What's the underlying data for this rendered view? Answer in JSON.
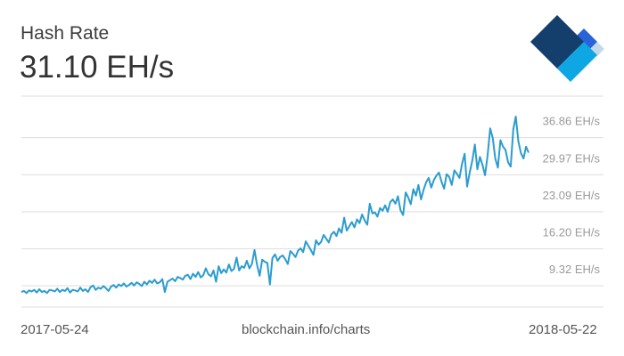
{
  "header": {
    "title": "Hash Rate",
    "current_value": "31.10 EH/s"
  },
  "footer": {
    "start_date": "2017-05-24",
    "source": "blockchain.info/charts",
    "end_date": "2018-05-22"
  },
  "logo": {
    "name": "blockchain-logo-icon",
    "colors": [
      "#8ba2b5",
      "#143e6b",
      "#2a63d8",
      "#0fa7e3",
      "#c3d9ea"
    ]
  },
  "colors": {
    "line": "#2b9ccf",
    "grid": "#dddddd",
    "tick_label": "#9a9a9a"
  },
  "chart_data": {
    "type": "line",
    "title": "Hash Rate",
    "unit": "EH/s",
    "x_start": "2017-05-24",
    "x_end": "2018-05-22",
    "yticks": [
      9.32,
      16.2,
      23.09,
      29.97,
      36.86
    ],
    "ytick_labels": [
      "9.32 EH/s",
      "16.20 EH/s",
      "23.09 EH/s",
      "29.97 EH/s",
      "36.86 EH/s"
    ],
    "ylim": [
      2.4,
      41.6
    ],
    "grid": true,
    "legend": "none",
    "series": [
      {
        "values": [
          5.2,
          5.4,
          5.0,
          5.5,
          5.3,
          5.6,
          5.1,
          5.7,
          5.2,
          5.4,
          5.0,
          5.6,
          5.5,
          5.3,
          5.8,
          5.2,
          5.6,
          5.4,
          5.9,
          5.1,
          5.6,
          5.5,
          5.3,
          6.0,
          5.4,
          5.7,
          5.2,
          6.1,
          6.4,
          5.6,
          6.0,
          5.8,
          6.3,
          5.9,
          5.4,
          6.2,
          6.5,
          6.0,
          6.6,
          6.3,
          6.8,
          6.2,
          6.5,
          6.9,
          6.4,
          7.0,
          6.7,
          6.3,
          7.1,
          6.6,
          7.3,
          6.9,
          7.5,
          6.8,
          7.0,
          7.6,
          5.2,
          7.1,
          7.4,
          7.7,
          7.2,
          8.0,
          7.8,
          7.5,
          8.2,
          8.4,
          7.6,
          8.6,
          8.0,
          8.9,
          7.9,
          8.3,
          9.6,
          8.5,
          8.1,
          9.2,
          7.1,
          10.0,
          8.7,
          9.4,
          8.8,
          10.3,
          9.1,
          9.5,
          11.6,
          9.2,
          10.0,
          9.7,
          11.0,
          9.6,
          10.4,
          13.0,
          10.2,
          8.2,
          11.2,
          10.8,
          10.6,
          6.6,
          11.5,
          12.2,
          11.0,
          11.7,
          12.0,
          11.3,
          10.4,
          12.8,
          12.3,
          11.7,
          12.9,
          13.3,
          12.6,
          14.6,
          13.8,
          13.0,
          12.1,
          14.8,
          14.0,
          14.5,
          15.8,
          15.1,
          14.4,
          15.9,
          16.4,
          15.6,
          17.0,
          16.2,
          19.0,
          16.6,
          17.4,
          18.2,
          17.2,
          18.7,
          18.0,
          19.6,
          18.5,
          17.7,
          21.6,
          19.8,
          20.0,
          19.2,
          20.8,
          20.3,
          21.3,
          20.1,
          21.9,
          22.4,
          21.6,
          23.0,
          20.4,
          19.5,
          23.7,
          22.8,
          21.5,
          24.3,
          23.1,
          25.1,
          22.4,
          24.2,
          25.6,
          26.4,
          24.6,
          26.0,
          26.8,
          27.4,
          25.7,
          24.4,
          27.1,
          26.6,
          25.1,
          27.8,
          27.2,
          26.4,
          29.0,
          30.9,
          24.8,
          27.4,
          29.6,
          32.6,
          28.0,
          30.3,
          28.8,
          26.9,
          30.6,
          35.6,
          33.8,
          30.0,
          28.3,
          33.4,
          32.2,
          31.6,
          29.3,
          28.5,
          35.4,
          37.8,
          33.2,
          31.0,
          30.0,
          32.2,
          31.1
        ]
      }
    ]
  }
}
